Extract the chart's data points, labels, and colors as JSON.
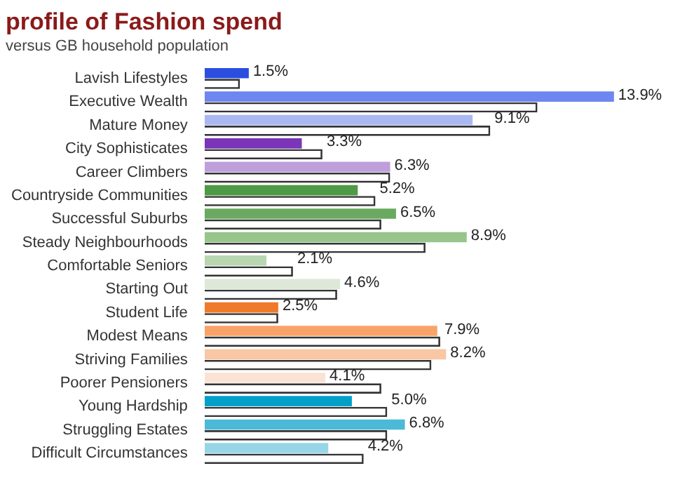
{
  "chart_data": {
    "type": "bar",
    "orientation": "horizontal",
    "title": "profile of Fashion spend",
    "subtitle": "versus GB household population",
    "categories": [
      "Lavish Lifestyles",
      "Executive Wealth",
      "Mature Money",
      "City Sophisticates",
      "Career Climbers",
      "Countryside Communities",
      "Successful Suburbs",
      "Steady Neighbourhoods",
      "Comfortable Seniors",
      "Starting Out",
      "Student Life",
      "Modest Means",
      "Striving Families",
      "Poorer Pensioners",
      "Young Hardship",
      "Struggling Estates",
      "Difficult Circumstances"
    ],
    "series": [
      {
        "values": [
          1.5,
          13.9,
          9.1,
          3.3,
          6.3,
          5.2,
          6.5,
          8.9,
          2.1,
          4.6,
          2.5,
          7.9,
          8.2,
          4.1,
          5.0,
          6.8,
          4.2
        ],
        "value_labels": [
          "1.5%",
          "13.9%",
          "9.1%",
          "3.3%",
          "6.3%",
          "5.2%",
          "6.5%",
          "8.9%",
          "2.1%",
          "4.6%",
          "2.5%",
          "7.9%",
          "8.2%",
          "4.1%",
          "5.0%",
          "6.8%",
          "4.2%"
        ],
        "colors": [
          "#2b4ee0",
          "#6e86f0",
          "#a9b8f2",
          "#7b35b8",
          "#bf9fda",
          "#4f9a44",
          "#6aaa60",
          "#97c58c",
          "#b8d6b0",
          "#dde8d8",
          "#f07a2a",
          "#f8a468",
          "#f9c7a4",
          "#fbe3d4",
          "#00a0c8",
          "#4bbad6",
          "#96d6e8"
        ]
      },
      {
        "values": [
          1.2,
          11.3,
          9.7,
          4.0,
          6.3,
          5.8,
          6.0,
          7.5,
          3.0,
          4.5,
          2.5,
          8.0,
          7.7,
          6.0,
          6.2,
          6.2,
          5.4
        ],
        "color": "#333333"
      }
    ],
    "legend": false
  }
}
